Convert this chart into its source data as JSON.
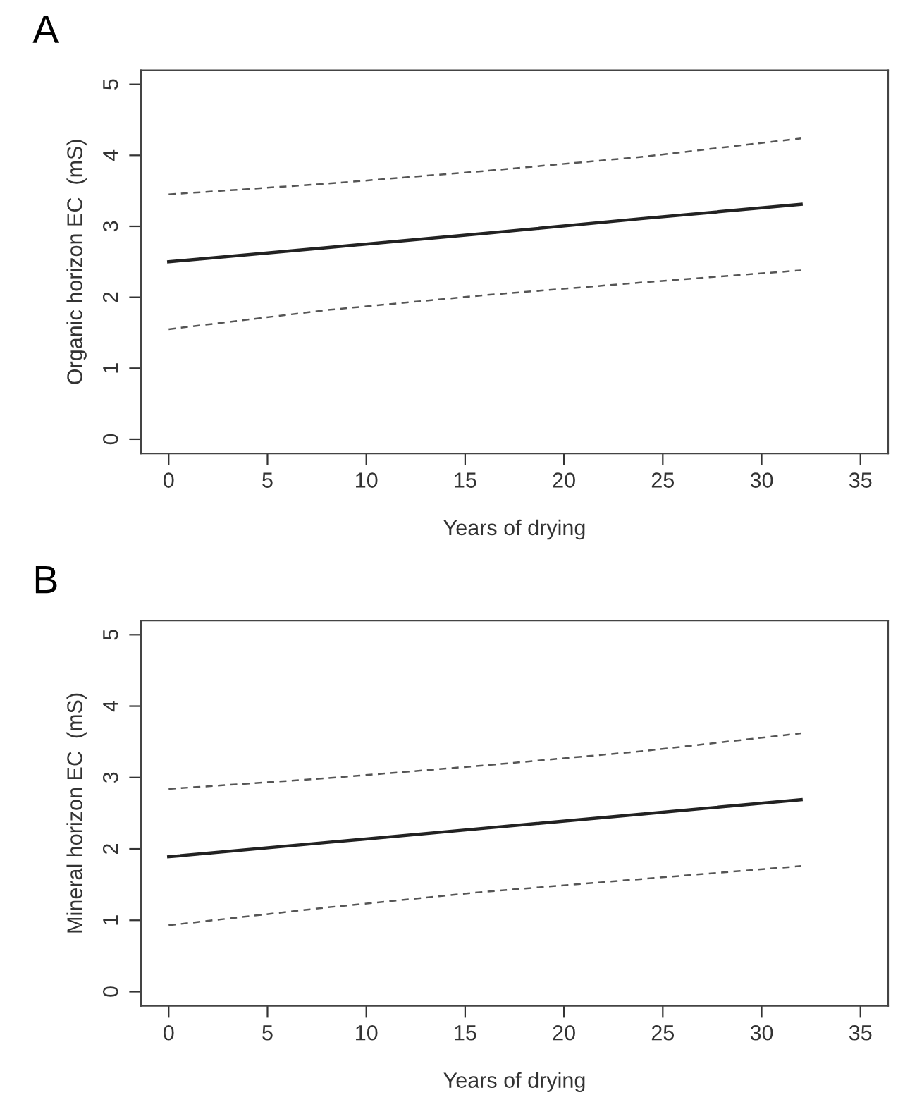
{
  "chart_data": [
    {
      "type": "line",
      "title": "A",
      "xlabel": "Years of drying",
      "ylabel": "Organic horizon EC  (mS)",
      "x": [
        0,
        8,
        16,
        24,
        32
      ],
      "series": [
        {
          "color": "#222222",
          "line_style": "solid",
          "values": [
            2.5,
            2.7,
            2.9,
            3.11,
            3.31
          ]
        },
        {
          "color": "#555555",
          "line_style": "dashed",
          "values": [
            3.45,
            3.6,
            3.78,
            3.98,
            4.24
          ]
        },
        {
          "color": "#555555",
          "line_style": "dashed",
          "values": [
            1.55,
            1.82,
            2.03,
            2.21,
            2.38
          ]
        }
      ],
      "xlim": [
        -1.4,
        36.4
      ],
      "ylim": [
        -0.2,
        5.2
      ],
      "xticks": [
        0,
        5,
        10,
        15,
        20,
        25,
        30,
        35
      ],
      "yticks": [
        0,
        1,
        2,
        3,
        4,
        5
      ],
      "grid": false,
      "legend": false,
      "marker": "none"
    },
    {
      "type": "line",
      "title": "B",
      "xlabel": "Years of drying",
      "ylabel": "Mineral horizon EC  (mS)",
      "x": [
        0,
        8,
        16,
        24,
        32
      ],
      "series": [
        {
          "color": "#222222",
          "line_style": "solid",
          "values": [
            1.89,
            2.09,
            2.29,
            2.49,
            2.69
          ]
        },
        {
          "color": "#555555",
          "line_style": "dashed",
          "values": [
            2.84,
            2.99,
            3.17,
            3.37,
            3.62
          ]
        },
        {
          "color": "#555555",
          "line_style": "dashed",
          "values": [
            0.93,
            1.18,
            1.4,
            1.58,
            1.76
          ]
        }
      ],
      "xlim": [
        -1.4,
        36.4
      ],
      "ylim": [
        -0.2,
        5.2
      ],
      "xticks": [
        0,
        5,
        10,
        15,
        20,
        25,
        30,
        35
      ],
      "yticks": [
        0,
        1,
        2,
        3,
        4,
        5
      ],
      "grid": false,
      "legend": false,
      "marker": "none"
    }
  ]
}
